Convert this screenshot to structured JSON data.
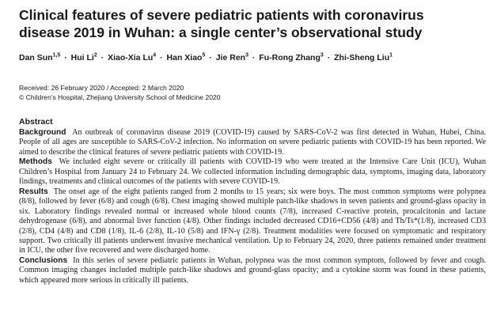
{
  "title": "Clinical features of severe pediatric patients with coronavirus disease 2019 in Wuhan: a single center’s observational study",
  "authors": [
    {
      "name": "Dan Sun",
      "aff": "1,5"
    },
    {
      "name": "Hui Li",
      "aff": "2"
    },
    {
      "name": "Xiao-Xia Lu",
      "aff": "4"
    },
    {
      "name": "Han Xiao",
      "aff": "5"
    },
    {
      "name": "Jie Ren",
      "aff": "3"
    },
    {
      "name": "Fu-Rong Zhang",
      "aff": "3"
    },
    {
      "name": "Zhi-Sheng Liu",
      "aff": "1"
    }
  ],
  "author_separator": "·",
  "received": "Received: 26 February 2020 / Accepted: 2 March 2020",
  "copyright": "© Children’s Hospital, Zhejiang University School of Medicine 2020",
  "abstract": {
    "heading": "Abstract",
    "sections": [
      {
        "label": "Background",
        "text": "An outbreak of coronavirus disease 2019 (COVID-19) caused by SARS-CoV-2 was first detected in Wuhan, Hubei, China. People of all ages are susceptible to SARS-CoV-2 infection. No information on severe pediatric patients with COVID-19 has been reported. We aimed to describe the clinical features of severe pediatric patients with COVID-19."
      },
      {
        "label": "Methods",
        "text": "We included eight severe or critically ill patients with COVID-19 who were treated at the Intensive Care Unit (ICU), Wuhan Children’s Hospital from January 24 to February 24. We collected information including demographic data, symptoms, imaging data, laboratory findings, treatments and clinical outcomes of the patients with severe COVID-19."
      },
      {
        "label": "Results",
        "text": "The onset age of the eight patients ranged from 2 months to 15 years; six were boys. The most common symptoms were polypnea (8/8), followed by fever (6/8) and cough (6/8). Chest imaging showed multiple patch-like shadows in seven patients and ground-glass opacity in six. Laboratory findings revealed normal or increased whole blood counts (7/8), increased C-reactive protein, procalcitonin and lactate dehydrogenase (6/8), and abnormal liver function (4/8). Other findings included decreased CD16+CD56 (4/8) and Th/Ts*(1/8), increased CD3 (2/8), CD4 (4/8) and CD8 (1/8), IL-6 (2/8), IL-10 (5/8) and IFN-γ (2/8). Treatment modalities were focused on symptomatic and respiratory support. Two critically ill patients underwent invasive mechanical ventilation. Up to February 24, 2020, three patients remained under treatment in ICU, the other five recovered and were discharged home."
      },
      {
        "label": "Conclusions",
        "text": "In this series of severe pediatric patients in Wuhan, polypnea was the most common symptom, followed by fever and cough. Common imaging changes included multiple patch-like shadows and ground-glass opacity; and a cytokine storm was found in these patients, which appeared more serious in critically ill patients."
      }
    ]
  }
}
